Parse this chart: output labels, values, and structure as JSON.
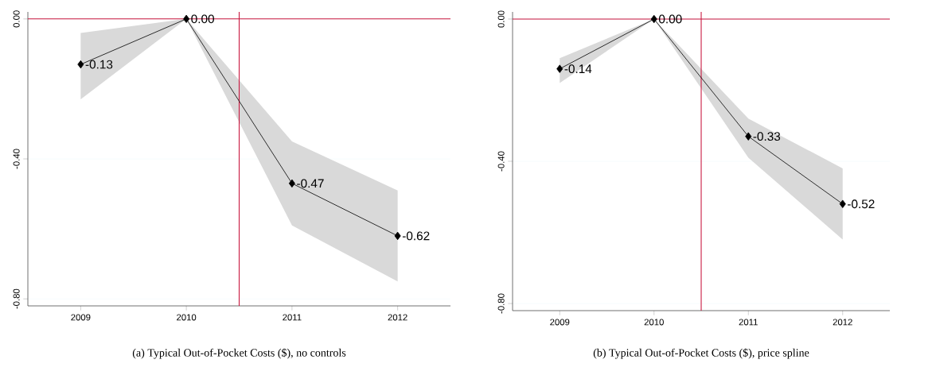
{
  "chart_data": [
    {
      "type": "line",
      "annotations": [
        "(a) Typical Out-of-Pocket Costs ($), no controls"
      ],
      "x": [
        2009,
        2010,
        2011,
        2012
      ],
      "series": [
        {
          "color": "#000000",
          "values": [
            -0.13,
            0.0,
            -0.47,
            -0.62
          ],
          "value_labels": [
            "-0.13",
            "0.00",
            "-0.47",
            "-0.62"
          ],
          "lower": [
            -0.23,
            0.0,
            -0.59,
            -0.75
          ],
          "upper": [
            -0.04,
            0.0,
            -0.35,
            -0.49
          ]
        }
      ],
      "xlim": [
        2008.5,
        2012.5
      ],
      "ylim": [
        -0.82,
        0.02
      ],
      "xticks": [
        2009,
        2010,
        2011,
        2012
      ],
      "yticks": [
        {
          "value": 0,
          "label": "0.00"
        },
        {
          "value": -0.4,
          "label": "-0.40"
        },
        {
          "value": -0.8,
          "label": "-0.80"
        }
      ],
      "grid": "y",
      "marker": "diamond",
      "line_style": "solid",
      "ref_lines": [
        {
          "axis": "y",
          "value": 0,
          "color": "#c8143c"
        },
        {
          "axis": "x",
          "value": 2010.5,
          "color": "#c8143c"
        }
      ]
    },
    {
      "type": "line",
      "annotations": [
        "(b) Typical Out-of-Pocket Costs ($), price spline"
      ],
      "x": [
        2009,
        2010,
        2011,
        2012
      ],
      "series": [
        {
          "color": "#000000",
          "values": [
            -0.14,
            0.0,
            -0.33,
            -0.52
          ],
          "value_labels": [
            "-0.14",
            "0.00",
            "-0.33",
            "-0.52"
          ],
          "lower": [
            -0.18,
            0.0,
            -0.39,
            -0.62
          ],
          "upper": [
            -0.11,
            0.0,
            -0.28,
            -0.42
          ]
        }
      ],
      "xlim": [
        2008.5,
        2012.5
      ],
      "ylim": [
        -0.82,
        0.02
      ],
      "xticks": [
        2009,
        2010,
        2011,
        2012
      ],
      "yticks": [
        {
          "value": 0,
          "label": "0.00"
        },
        {
          "value": -0.4,
          "label": "-0.40"
        },
        {
          "value": -0.8,
          "label": "-0.80"
        }
      ],
      "grid": "y",
      "marker": "diamond",
      "line_style": "solid",
      "ref_lines": [
        {
          "axis": "y",
          "value": 0,
          "color": "#c8143c"
        },
        {
          "axis": "x",
          "value": 2010.5,
          "color": "#c8143c"
        }
      ]
    }
  ]
}
